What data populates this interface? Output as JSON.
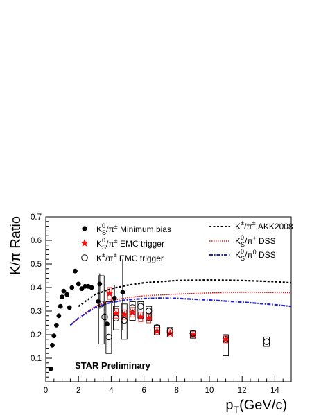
{
  "chart_data": {
    "type": "scatter",
    "title": "",
    "xlabel": "p_T(GeV/c)",
    "ylabel": "K/π Ratio",
    "xlim": [
      0,
      15
    ],
    "ylim": [
      0,
      0.7
    ],
    "x_ticks": [
      0,
      2,
      4,
      6,
      8,
      10,
      12,
      14
    ],
    "y_ticks": [
      0.1,
      0.2,
      0.3,
      0.4,
      0.5,
      0.6,
      0.7
    ],
    "x_tick_labels": [
      "0",
      "2",
      "4",
      "6",
      "8",
      "10",
      "12",
      "14"
    ],
    "y_tick_labels": [
      "0.1",
      "0.2",
      "0.3",
      "0.4",
      "0.5",
      "0.6",
      "0.7"
    ],
    "annotation": "STAR Preliminary",
    "legend": {
      "left": [
        {
          "label": "K_S^0/π^± Minimum bias",
          "marker": "filled-circle",
          "color": "#000000"
        },
        {
          "label": "K_S^0/π^± EMC trigger",
          "marker": "star",
          "color": "#ee1111"
        },
        {
          "label": "K^±/π^± EMC trigger",
          "marker": "open-circle",
          "color": "#000000"
        }
      ],
      "right": [
        {
          "label": "K^±/π^± AKK2008",
          "style": "dashed",
          "color": "#000000"
        },
        {
          "label": "K_S^0/π^± DSS",
          "style": "dotted",
          "color": "#ee1111"
        },
        {
          "label": "K_S^0/π^0 DSS",
          "style": "dash-dot",
          "color": "#2222cc"
        }
      ]
    },
    "series": [
      {
        "name": "K_S^0/π^± Minimum bias",
        "marker": "filled-circle",
        "color": "#000000",
        "points": [
          {
            "x": 0.3,
            "y": 0.055
          },
          {
            "x": 0.4,
            "y": 0.155
          },
          {
            "x": 0.5,
            "y": 0.195
          },
          {
            "x": 0.65,
            "y": 0.24
          },
          {
            "x": 0.8,
            "y": 0.28
          },
          {
            "x": 0.9,
            "y": 0.32
          },
          {
            "x": 1.0,
            "y": 0.36
          },
          {
            "x": 1.1,
            "y": 0.385
          },
          {
            "x": 1.3,
            "y": 0.37
          },
          {
            "x": 1.45,
            "y": 0.315
          },
          {
            "x": 1.6,
            "y": 0.4
          },
          {
            "x": 1.8,
            "y": 0.47
          },
          {
            "x": 2.0,
            "y": 0.415
          },
          {
            "x": 2.2,
            "y": 0.395
          },
          {
            "x": 2.4,
            "y": 0.405
          },
          {
            "x": 2.6,
            "y": 0.405
          },
          {
            "x": 2.8,
            "y": 0.4
          },
          {
            "x": 3.2,
            "y": 0.34
          },
          {
            "x": 3.3,
            "y": 0.415
          },
          {
            "x": 3.75,
            "y": 0.245
          },
          {
            "x": 4.2,
            "y": 0.355
          },
          {
            "x": 4.7,
            "y": 0.38
          }
        ],
        "error_bars": [
          {
            "x": 3.3,
            "low": 0.31,
            "high": 0.46
          },
          {
            "x": 3.75,
            "low": 0.14,
            "high": 0.35
          },
          {
            "x": 4.2,
            "low": 0.3,
            "high": 0.41
          },
          {
            "x": 4.7,
            "low": 0.22,
            "high": 0.52
          }
        ]
      },
      {
        "name": "K_S^0/π^± EMC trigger",
        "marker": "star",
        "color": "#ee1111",
        "points": [
          {
            "x": 3.9,
            "y": 0.375
          },
          {
            "x": 4.3,
            "y": 0.29
          },
          {
            "x": 4.8,
            "y": 0.285
          },
          {
            "x": 5.3,
            "y": 0.295
          },
          {
            "x": 5.8,
            "y": 0.275
          },
          {
            "x": 6.3,
            "y": 0.27
          },
          {
            "x": 6.8,
            "y": 0.215
          },
          {
            "x": 7.6,
            "y": 0.205
          },
          {
            "x": 9.0,
            "y": 0.2
          },
          {
            "x": 11.0,
            "y": 0.18
          }
        ],
        "sys_boxes": [
          {
            "x": 3.9,
            "low": 0.35,
            "high": 0.4
          },
          {
            "x": 4.3,
            "low": 0.27,
            "high": 0.31
          },
          {
            "x": 4.8,
            "low": 0.265,
            "high": 0.305
          },
          {
            "x": 5.3,
            "low": 0.275,
            "high": 0.315
          },
          {
            "x": 5.8,
            "low": 0.255,
            "high": 0.295
          },
          {
            "x": 6.3,
            "low": 0.25,
            "high": 0.29
          },
          {
            "x": 6.8,
            "low": 0.2,
            "high": 0.23
          },
          {
            "x": 7.6,
            "low": 0.19,
            "high": 0.22
          },
          {
            "x": 9.0,
            "low": 0.185,
            "high": 0.215
          },
          {
            "x": 11.0,
            "low": 0.165,
            "high": 0.195
          }
        ]
      },
      {
        "name": "K^±/π^± EMC trigger",
        "marker": "open-circle",
        "color": "#000000",
        "points": [
          {
            "x": 3.4,
            "y": 0.33
          },
          {
            "x": 3.6,
            "y": 0.275
          },
          {
            "x": 3.85,
            "y": 0.19
          },
          {
            "x": 4.3,
            "y": 0.27
          },
          {
            "x": 4.8,
            "y": 0.26
          },
          {
            "x": 5.3,
            "y": 0.315
          },
          {
            "x": 5.8,
            "y": 0.32
          },
          {
            "x": 6.3,
            "y": 0.3
          },
          {
            "x": 6.8,
            "y": 0.23
          },
          {
            "x": 7.6,
            "y": 0.215
          },
          {
            "x": 9.0,
            "y": 0.205
          },
          {
            "x": 11.0,
            "y": 0.18
          },
          {
            "x": 13.5,
            "y": 0.17
          }
        ],
        "sys_boxes": [
          {
            "x": 3.4,
            "low": 0.16,
            "high": 0.45
          },
          {
            "x": 3.85,
            "low": 0.12,
            "high": 0.34
          },
          {
            "x": 4.3,
            "low": 0.22,
            "high": 0.32
          },
          {
            "x": 4.8,
            "low": 0.18,
            "high": 0.33
          },
          {
            "x": 5.3,
            "low": 0.26,
            "high": 0.34
          },
          {
            "x": 5.8,
            "low": 0.27,
            "high": 0.34
          },
          {
            "x": 6.3,
            "low": 0.26,
            "high": 0.32
          },
          {
            "x": 6.8,
            "low": 0.2,
            "high": 0.24
          },
          {
            "x": 7.6,
            "low": 0.19,
            "high": 0.23
          },
          {
            "x": 9.0,
            "low": 0.185,
            "high": 0.215
          },
          {
            "x": 11.0,
            "low": 0.11,
            "high": 0.2
          },
          {
            "x": 13.5,
            "low": 0.15,
            "high": 0.19
          }
        ]
      }
    ],
    "curves": [
      {
        "name": "K^±/π^± AKK2008",
        "style": "dashed",
        "color": "#000000",
        "points": [
          [
            2.0,
            0.32
          ],
          [
            3.0,
            0.37
          ],
          [
            4.0,
            0.395
          ],
          [
            5.0,
            0.41
          ],
          [
            6.0,
            0.42
          ],
          [
            7.0,
            0.425
          ],
          [
            8.0,
            0.43
          ],
          [
            10.0,
            0.432
          ],
          [
            12.0,
            0.43
          ],
          [
            14.0,
            0.425
          ],
          [
            15.0,
            0.42
          ]
        ]
      },
      {
        "name": "K_S^0/π^± DSS",
        "style": "dotted",
        "color": "#ee1111",
        "points": [
          [
            1.5,
            0.24
          ],
          [
            2.0,
            0.27
          ],
          [
            3.0,
            0.32
          ],
          [
            4.0,
            0.345
          ],
          [
            5.0,
            0.357
          ],
          [
            6.0,
            0.365
          ],
          [
            8.0,
            0.372
          ],
          [
            10.0,
            0.377
          ],
          [
            12.0,
            0.38
          ],
          [
            15.0,
            0.378
          ]
        ]
      },
      {
        "name": "K_S^0/π^0 DSS",
        "style": "dash-dot",
        "color": "#2222cc",
        "points": [
          [
            1.5,
            0.24
          ],
          [
            2.0,
            0.27
          ],
          [
            3.0,
            0.315
          ],
          [
            4.0,
            0.337
          ],
          [
            5.0,
            0.348
          ],
          [
            6.0,
            0.353
          ],
          [
            7.0,
            0.355
          ],
          [
            8.0,
            0.354
          ],
          [
            10.0,
            0.347
          ],
          [
            12.0,
            0.338
          ],
          [
            14.0,
            0.327
          ],
          [
            15.0,
            0.32
          ]
        ]
      }
    ]
  }
}
